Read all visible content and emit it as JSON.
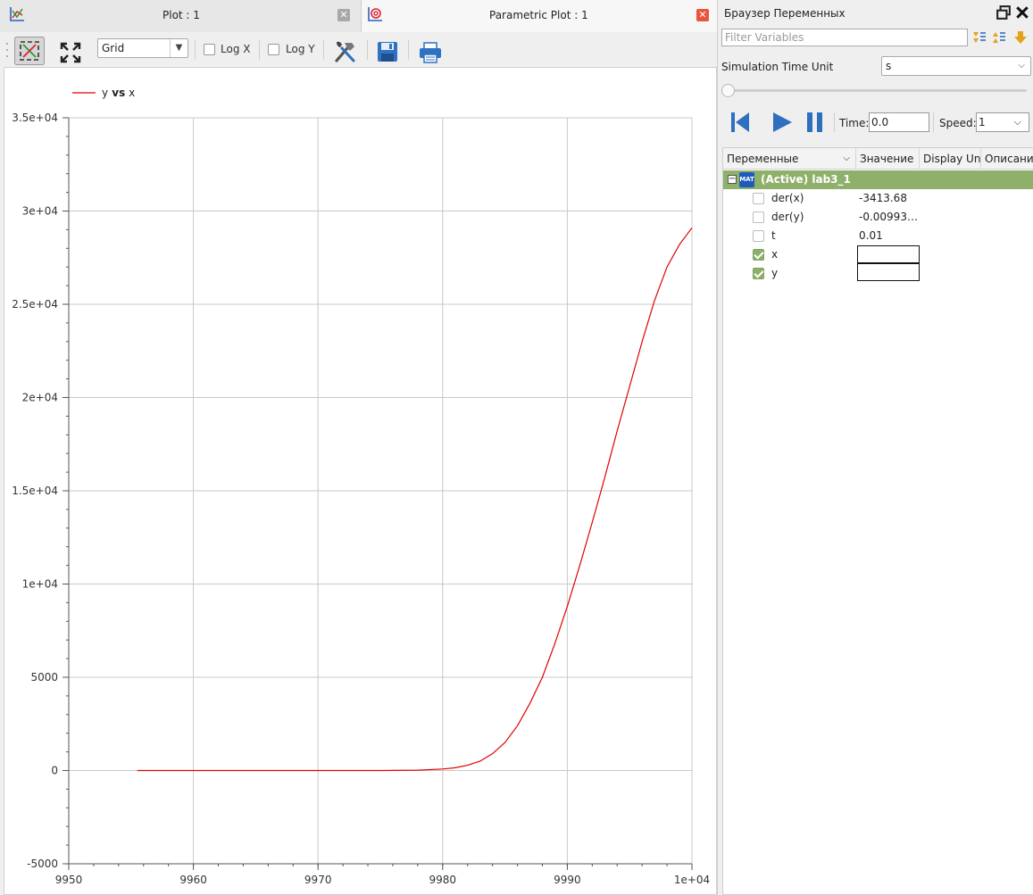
{
  "tabs": [
    {
      "label": "Plot : 1",
      "active": false
    },
    {
      "label": "Parametric Plot : 1",
      "active": true
    }
  ],
  "toolbar": {
    "grid_option": "Grid",
    "logx_label": "Log X",
    "logy_label": "Log Y"
  },
  "chart_data": {
    "type": "line",
    "series": [
      {
        "name": "y vs x",
        "color": "#e00000",
        "x": [
          9955.5,
          9960,
          9965,
          9970,
          9975,
          9978,
          9980,
          9981,
          9982,
          9983,
          9984,
          9985,
          9986,
          9987,
          9988,
          9989,
          9990,
          9991,
          9992,
          9993,
          9994,
          9995,
          9996,
          9997,
          9998,
          9999,
          10000
        ],
        "y": [
          0,
          0,
          0,
          0,
          0,
          20,
          80,
          150,
          280,
          500,
          900,
          1500,
          2400,
          3600,
          5000,
          6800,
          8800,
          11000,
          13300,
          15700,
          18200,
          20600,
          23000,
          25200,
          27000,
          28200,
          29100
        ]
      }
    ],
    "legend_text": "y vs x",
    "xlim": [
      9950,
      10000
    ],
    "ylim": [
      -5000,
      35000
    ],
    "x_ticks": [
      9950,
      9960,
      9970,
      9980,
      9990,
      10000
    ],
    "x_tick_labels": [
      "9950",
      "9960",
      "9970",
      "9980",
      "9990",
      "1e+04"
    ],
    "y_ticks": [
      -5000,
      0,
      5000,
      10000,
      15000,
      20000,
      25000,
      30000,
      35000
    ],
    "y_tick_labels": [
      "-5000",
      "0",
      "5000",
      "1e+04",
      "1.5e+04",
      "2e+04",
      "2.5e+04",
      "3e+04",
      "3.5e+04"
    ],
    "grid": true,
    "legend": "top-left"
  },
  "browser": {
    "title": "Браузер Переменных",
    "filter_placeholder": "Filter Variables",
    "time_unit_label": "Simulation Time Unit",
    "time_unit_value": "s",
    "time_label": "Time:",
    "time_value": "0.0",
    "speed_label": "Speed:",
    "speed_value": "1",
    "columns": [
      "Переменные",
      "Значение",
      "Display Un",
      "Описани"
    ],
    "model_badge": "MAT",
    "model": "(Active) lab3_1",
    "variables": [
      {
        "name": "der(x)",
        "value": "-3413.68",
        "checked": false
      },
      {
        "name": "der(y)",
        "value": "-0.00993…",
        "checked": false
      },
      {
        "name": "t",
        "value": "0.01",
        "checked": false
      },
      {
        "name": "x",
        "value": "",
        "checked": true
      },
      {
        "name": "y",
        "value": "",
        "checked": true
      }
    ]
  },
  "colors": {
    "accent": "#8fb06b",
    "series": "#e00000",
    "close": "#e8553a",
    "player": "#2f6fbf"
  }
}
